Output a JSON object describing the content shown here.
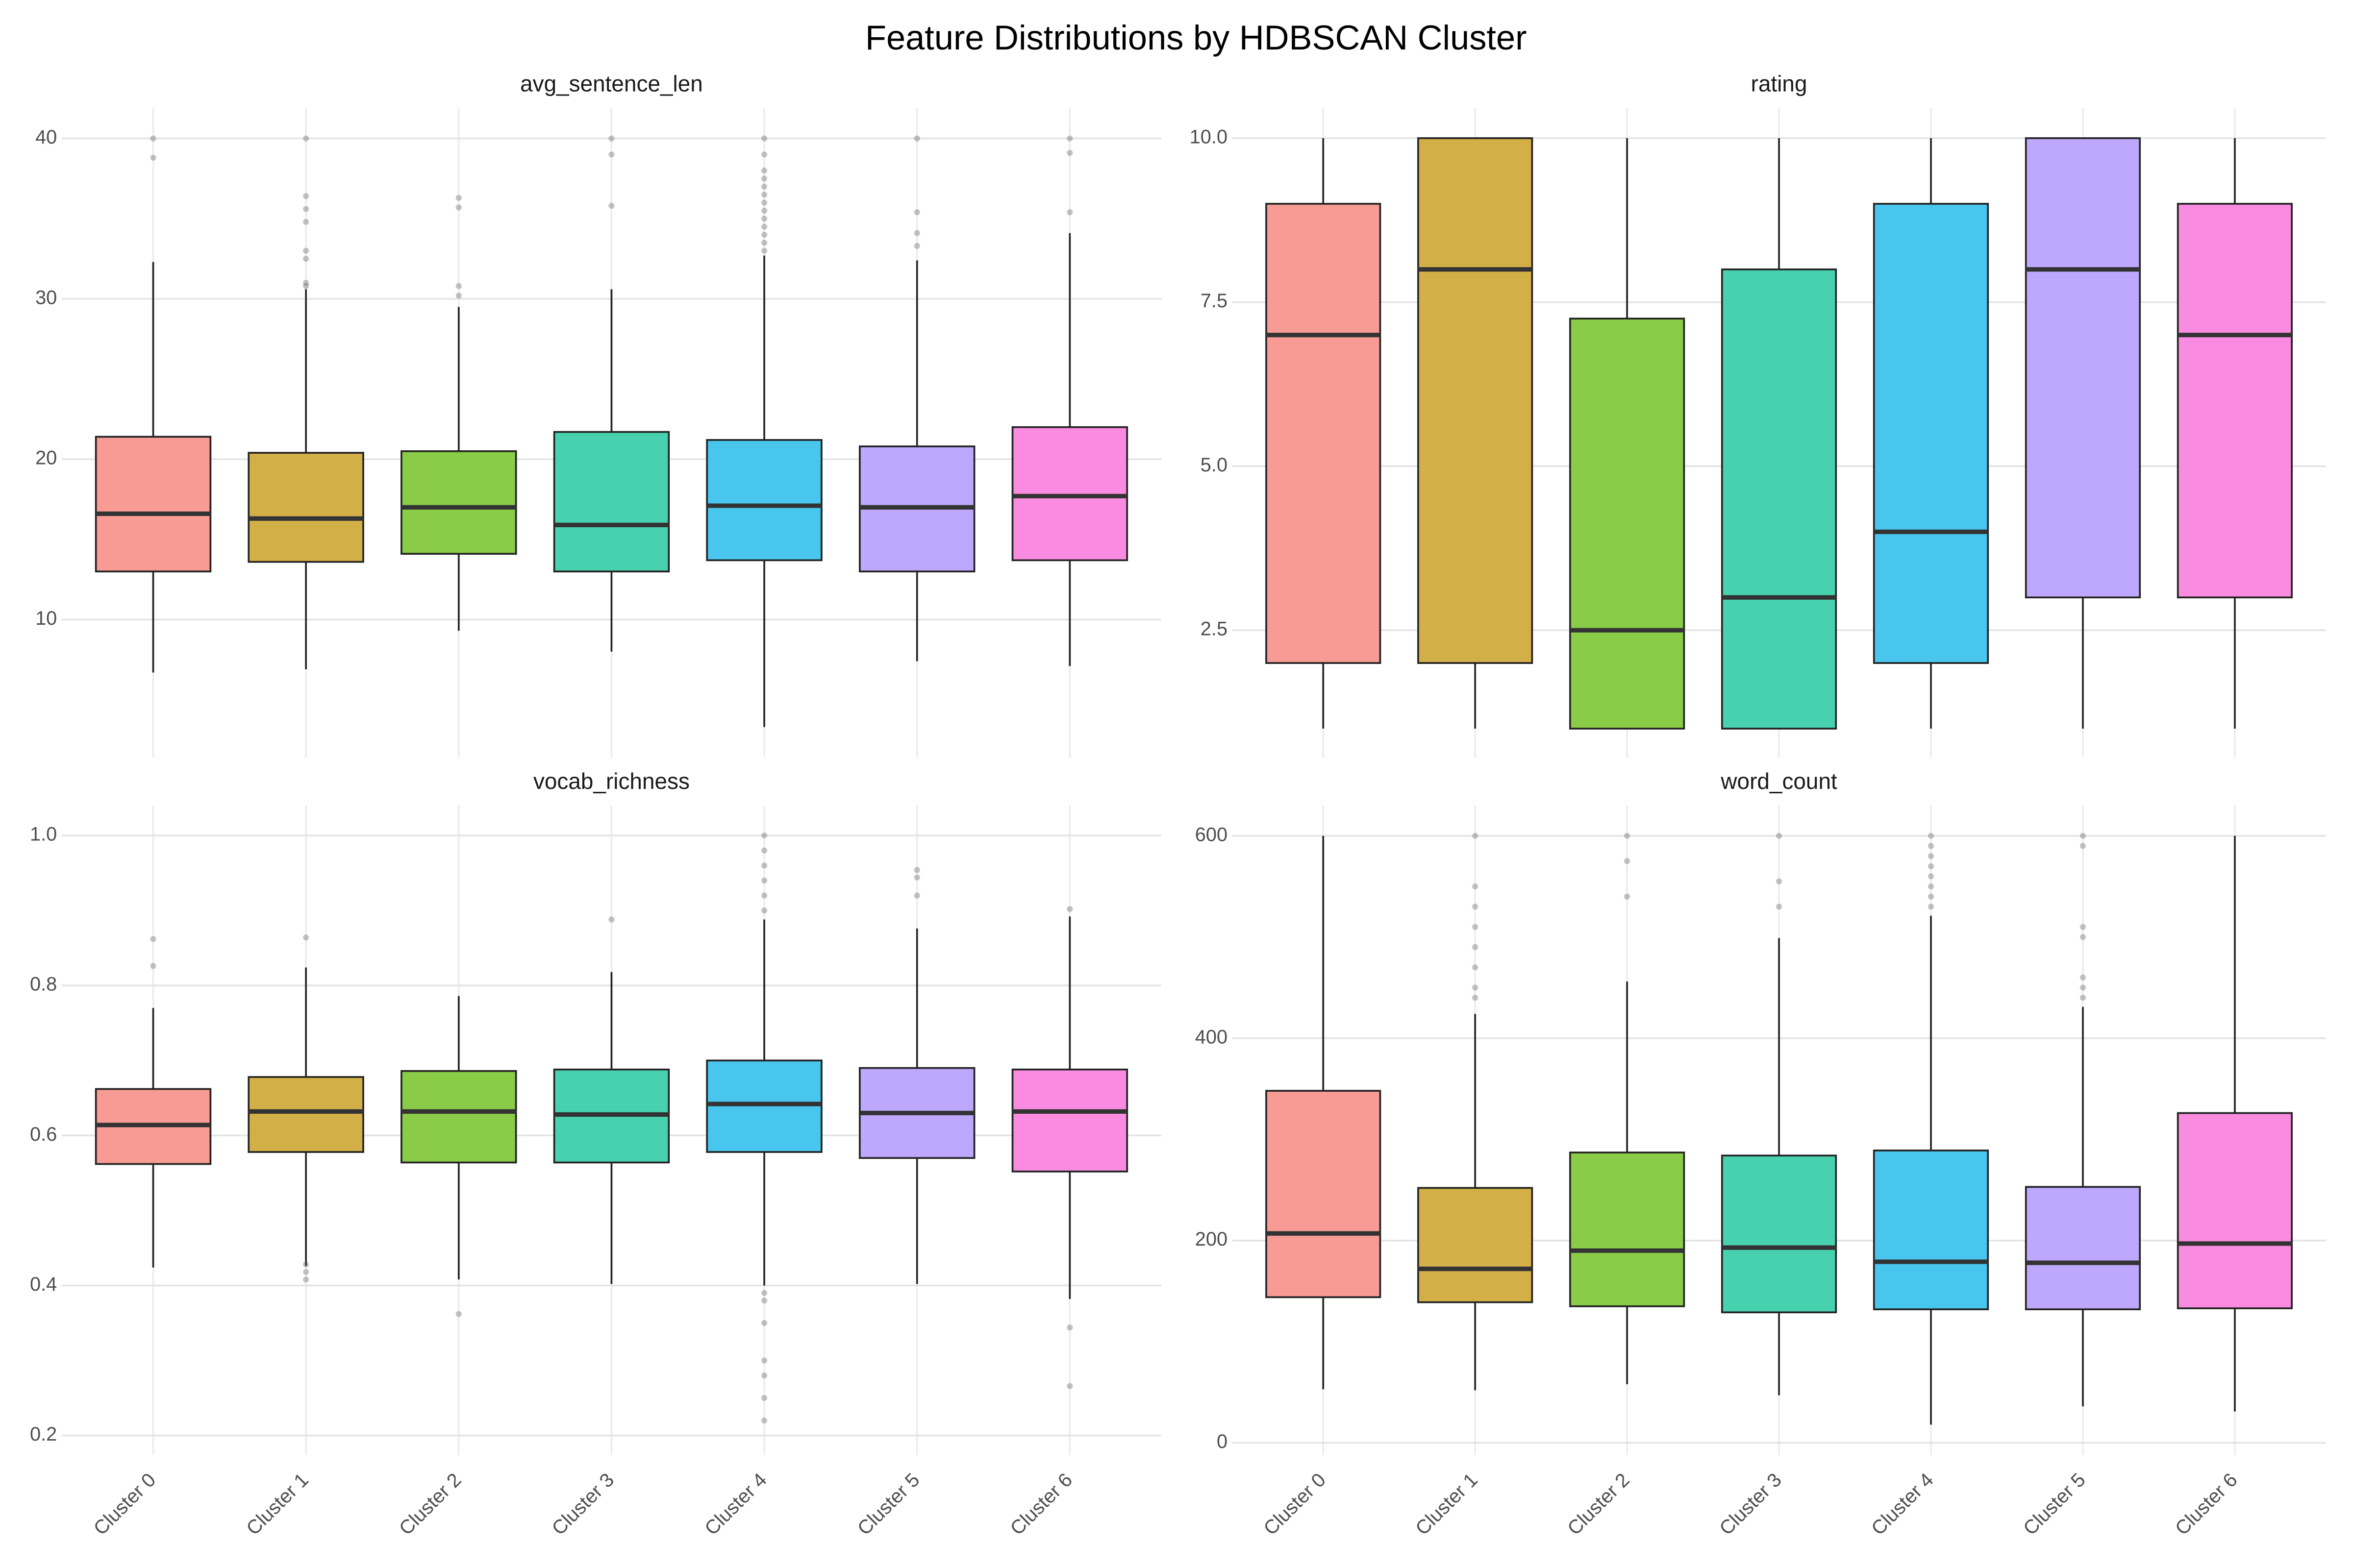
{
  "title": "Feature Distributions by HDBSCAN Cluster",
  "categories": [
    "Cluster 0",
    "Cluster 1",
    "Cluster 2",
    "Cluster 3",
    "Cluster 4",
    "Cluster 5",
    "Cluster 6"
  ],
  "colors": [
    "#f79b94",
    "#d3b047",
    "#8acb48",
    "#48d1ae",
    "#48c6ee",
    "#bda8fd",
    "#f98ce0"
  ],
  "grid": true,
  "chart_data": [
    {
      "type": "box",
      "title": "avg_sentence_len",
      "ylim": [
        1.4,
        41.9
      ],
      "yticks": [
        10,
        20,
        30,
        40
      ],
      "boxes": [
        {
          "min": 6.7,
          "q1": 13.0,
          "median": 16.6,
          "q3": 21.4,
          "max": 32.3,
          "outliers": [
            40,
            38.8
          ]
        },
        {
          "min": 6.9,
          "q1": 13.6,
          "median": 16.3,
          "q3": 20.4,
          "max": 30.6,
          "outliers": [
            40,
            36.4,
            35.6,
            34.8,
            33.0,
            32.5,
            31.0,
            30.8
          ]
        },
        {
          "min": 9.3,
          "q1": 14.1,
          "median": 17.0,
          "q3": 20.5,
          "max": 29.5,
          "outliers": [
            36.3,
            35.7,
            30.8,
            30.2
          ]
        },
        {
          "min": 8.0,
          "q1": 13.0,
          "median": 15.9,
          "q3": 21.7,
          "max": 30.6,
          "outliers": [
            40,
            39.0,
            35.8
          ]
        },
        {
          "min": 3.3,
          "q1": 13.7,
          "median": 17.1,
          "q3": 21.2,
          "max": 32.7,
          "outliers": [
            33,
            33.5,
            34,
            34.5,
            35,
            35.5,
            36,
            36.5,
            37,
            37.5,
            38,
            39,
            40
          ]
        },
        {
          "min": 7.4,
          "q1": 13.0,
          "median": 17.0,
          "q3": 20.8,
          "max": 32.4,
          "outliers": [
            40,
            35.4,
            34.1,
            33.3
          ]
        },
        {
          "min": 7.1,
          "q1": 13.7,
          "median": 17.7,
          "q3": 22.0,
          "max": 34.1,
          "outliers": [
            40,
            39.1,
            35.4
          ]
        }
      ]
    },
    {
      "type": "box",
      "title": "rating",
      "ylim": [
        0.56,
        10.46
      ],
      "yticks": [
        2.5,
        {
          "value": 5,
          "label": "5.0"
        },
        7.5,
        {
          "value": 10,
          "label": "10.0"
        }
      ],
      "boxes": [
        {
          "min": 1,
          "q1": 2,
          "median": 7,
          "q3": 9,
          "max": 10,
          "outliers": []
        },
        {
          "min": 1,
          "q1": 2,
          "median": 8,
          "q3": 10,
          "max": 10,
          "outliers": []
        },
        {
          "min": 1,
          "q1": 1,
          "median": 2.5,
          "q3": 7.25,
          "max": 10,
          "outliers": []
        },
        {
          "min": 1,
          "q1": 1,
          "median": 3,
          "q3": 8,
          "max": 10,
          "outliers": []
        },
        {
          "min": 1,
          "q1": 2,
          "median": 4,
          "q3": 9,
          "max": 10,
          "outliers": []
        },
        {
          "min": 1,
          "q1": 3,
          "median": 8,
          "q3": 10,
          "max": 10,
          "outliers": []
        },
        {
          "min": 1,
          "q1": 3,
          "median": 7,
          "q3": 9,
          "max": 10,
          "outliers": []
        }
      ]
    },
    {
      "type": "box",
      "title": "vocab_richness",
      "ylim": [
        0.174,
        1.04
      ],
      "yticks": [
        0.2,
        0.4,
        0.6,
        0.8,
        {
          "value": 1,
          "label": "1.0"
        }
      ],
      "boxes": [
        {
          "min": 0.424,
          "q1": 0.562,
          "median": 0.614,
          "q3": 0.662,
          "max": 0.77,
          "outliers": [
            0.862,
            0.826
          ]
        },
        {
          "min": 0.426,
          "q1": 0.578,
          "median": 0.632,
          "q3": 0.678,
          "max": 0.824,
          "outliers": [
            0.864,
            0.428,
            0.418,
            0.408
          ]
        },
        {
          "min": 0.408,
          "q1": 0.564,
          "median": 0.632,
          "q3": 0.686,
          "max": 0.786,
          "outliers": [
            0.362
          ]
        },
        {
          "min": 0.402,
          "q1": 0.564,
          "median": 0.628,
          "q3": 0.688,
          "max": 0.818,
          "outliers": [
            0.888
          ]
        },
        {
          "min": 0.4,
          "q1": 0.578,
          "median": 0.642,
          "q3": 0.7,
          "max": 0.888,
          "outliers": [
            0.9,
            0.92,
            0.94,
            0.96,
            0.98,
            1.0,
            0.39,
            0.38,
            0.35,
            0.3,
            0.28,
            0.25,
            0.22
          ]
        },
        {
          "min": 0.402,
          "q1": 0.57,
          "median": 0.63,
          "q3": 0.69,
          "max": 0.876,
          "outliers": [
            0.954,
            0.944,
            0.92
          ]
        },
        {
          "min": 0.382,
          "q1": 0.552,
          "median": 0.632,
          "q3": 0.688,
          "max": 0.892,
          "outliers": [
            0.902,
            0.344,
            0.266
          ]
        }
      ]
    },
    {
      "type": "box",
      "title": "word_count",
      "ylim": [
        -12,
        630
      ],
      "yticks": [
        0,
        200,
        400,
        600
      ],
      "boxes": [
        {
          "min": 53,
          "q1": 144,
          "median": 207,
          "q3": 348,
          "max": 600,
          "outliers": []
        },
        {
          "min": 52,
          "q1": 139,
          "median": 172,
          "q3": 252,
          "max": 424,
          "outliers": [
            600,
            550,
            530,
            510,
            490,
            470,
            450,
            440
          ]
        },
        {
          "min": 58,
          "q1": 135,
          "median": 190,
          "q3": 287,
          "max": 456,
          "outliers": [
            600,
            575,
            540
          ]
        },
        {
          "min": 47,
          "q1": 129,
          "median": 193,
          "q3": 284,
          "max": 499,
          "outliers": [
            600,
            555,
            530
          ]
        },
        {
          "min": 18,
          "q1": 132,
          "median": 179,
          "q3": 289,
          "max": 521,
          "outliers": [
            530,
            540,
            550,
            560,
            570,
            580,
            590,
            600
          ]
        },
        {
          "min": 36,
          "q1": 132,
          "median": 178,
          "q3": 253,
          "max": 431,
          "outliers": [
            600,
            590,
            510,
            500,
            460,
            450,
            440
          ]
        },
        {
          "min": 31,
          "q1": 133,
          "median": 197,
          "q3": 326,
          "max": 600,
          "outliers": []
        }
      ]
    }
  ]
}
